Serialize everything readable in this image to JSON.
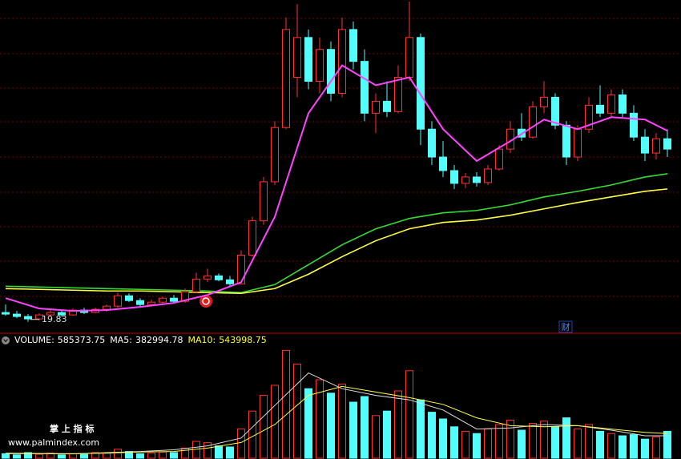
{
  "chart_data": [
    {
      "type": "candlestick",
      "up_color": "#ff3232",
      "down_color": "#54fcfc",
      "ylim": [
        18.5,
        60
      ],
      "open": [
        21.0,
        20.8,
        20.5,
        20.2,
        20.7,
        21.0,
        20.7,
        21.3,
        21.0,
        21.4,
        21.8,
        23.1,
        22.5,
        22.0,
        22.3,
        22.8,
        22.4,
        23.6,
        25.2,
        25.6,
        25.1,
        24.6,
        28.2,
        32.5,
        37.4,
        44.2,
        50.5,
        55.5,
        50.0,
        54.0,
        48.5,
        56.5,
        52.5,
        46.0,
        47.5,
        46.2,
        50.5,
        55.5,
        44.0,
        40.5,
        38.8,
        37.2,
        38.0,
        37.3,
        39.0,
        41.5,
        44.0,
        43.0,
        46.8,
        48.0,
        44.5,
        40.5,
        44.0,
        47.0,
        46.0,
        48.3,
        46.0,
        43.0,
        41.0,
        42.8
      ],
      "high": [
        22.0,
        21.2,
        20.8,
        20.9,
        21.3,
        21.3,
        21.5,
        21.6,
        21.6,
        22.0,
        23.5,
        23.4,
        22.8,
        22.6,
        23.0,
        23.2,
        24.0,
        26.0,
        26.5,
        25.9,
        25.6,
        28.8,
        33.0,
        38.0,
        45.0,
        58.0,
        59.7,
        56.5,
        55.5,
        55.0,
        58.0,
        57.5,
        54.0,
        48.5,
        50.0,
        52.0,
        60.0,
        56.0,
        45.0,
        42.5,
        39.5,
        38.5,
        38.6,
        39.5,
        42.0,
        45.0,
        46.0,
        47.5,
        50.0,
        48.5,
        45.0,
        44.5,
        48.0,
        49.5,
        49.0,
        49.0,
        47.0,
        44.0,
        43.5,
        44.0
      ],
      "low": [
        20.6,
        20.3,
        19.83,
        20.0,
        20.5,
        20.5,
        20.6,
        20.8,
        20.9,
        21.1,
        21.6,
        22.3,
        21.8,
        21.8,
        22.0,
        22.1,
        22.2,
        23.4,
        24.8,
        24.9,
        24.3,
        24.5,
        28.0,
        32.0,
        37.0,
        44.0,
        48.0,
        49.0,
        48.5,
        47.5,
        48.0,
        51.5,
        45.0,
        43.5,
        45.5,
        46.0,
        50.0,
        42.0,
        39.5,
        38.0,
        36.5,
        36.6,
        36.8,
        37.0,
        38.8,
        41.0,
        42.5,
        42.8,
        46.0,
        44.0,
        39.5,
        40.0,
        43.5,
        45.5,
        45.5,
        45.5,
        42.5,
        40.0,
        40.2,
        40.5
      ],
      "close": [
        20.8,
        20.5,
        20.2,
        20.7,
        21.0,
        20.7,
        21.3,
        21.0,
        21.4,
        21.8,
        23.1,
        22.5,
        22.0,
        22.3,
        22.8,
        22.4,
        23.6,
        25.2,
        25.6,
        25.1,
        24.6,
        28.2,
        32.5,
        37.4,
        44.2,
        56.5,
        55.5,
        50.0,
        54.0,
        48.5,
        56.5,
        52.5,
        46.0,
        47.5,
        46.2,
        50.5,
        55.5,
        44.0,
        40.5,
        38.8,
        37.2,
        38.0,
        37.3,
        39.0,
        41.5,
        44.0,
        43.0,
        46.8,
        48.0,
        44.5,
        40.5,
        44.0,
        47.0,
        46.0,
        48.3,
        46.0,
        43.0,
        41.0,
        42.8,
        41.5
      ],
      "lines": [
        {
          "color": "#33dd33",
          "x": [
            0,
            3,
            6,
            9,
            12,
            15,
            18,
            21,
            24,
            27,
            30,
            33,
            36,
            39,
            42,
            45,
            48,
            51,
            54,
            57,
            59
          ],
          "values": [
            24.3,
            24.2,
            24.1,
            24.0,
            23.9,
            23.8,
            23.7,
            23.5,
            24.5,
            27.0,
            29.5,
            31.5,
            32.8,
            33.5,
            33.8,
            34.5,
            35.5,
            36.2,
            37.0,
            38.0,
            38.4
          ]
        },
        {
          "color": "#ffff44",
          "x": [
            0,
            3,
            6,
            9,
            12,
            15,
            18,
            21,
            24,
            27,
            30,
            33,
            36,
            39,
            42,
            45,
            48,
            51,
            54,
            57,
            59
          ],
          "values": [
            24.0,
            23.9,
            23.8,
            23.7,
            23.7,
            23.6,
            23.5,
            23.4,
            24.0,
            25.8,
            28.0,
            30.0,
            31.5,
            32.3,
            32.6,
            33.2,
            34.0,
            34.8,
            35.5,
            36.2,
            36.5
          ]
        },
        {
          "color": "#ff44ff",
          "x": [
            0,
            3,
            6,
            9,
            12,
            15,
            18,
            21,
            24,
            27,
            30,
            33,
            36,
            39,
            42,
            45,
            48,
            51,
            54,
            57,
            59
          ],
          "values": [
            22.8,
            21.5,
            21.2,
            21.3,
            21.7,
            22.2,
            23.2,
            24.8,
            33.0,
            46.0,
            52.0,
            49.5,
            50.5,
            44.0,
            40.0,
            42.5,
            45.2,
            44.0,
            45.5,
            45.2,
            43.8
          ]
        }
      ],
      "low_label": 19.83,
      "annotation": "财"
    },
    {
      "type": "volume",
      "up_color": "#ff3232",
      "down_color": "#54fcfc",
      "ylim": [
        0,
        1000000
      ],
      "values": [
        40000,
        30000,
        50000,
        35000,
        45000,
        30000,
        40000,
        35000,
        50000,
        45000,
        80000,
        60000,
        40000,
        45000,
        55000,
        50000,
        90000,
        150000,
        140000,
        110000,
        100000,
        260000,
        420000,
        560000,
        650000,
        960000,
        840000,
        620000,
        700000,
        580000,
        660000,
        500000,
        550000,
        380000,
        420000,
        600000,
        780000,
        520000,
        410000,
        350000,
        280000,
        240000,
        220000,
        260000,
        300000,
        340000,
        250000,
        310000,
        330000,
        280000,
        360000,
        260000,
        300000,
        240000,
        220000,
        200000,
        210000,
        170000,
        190000,
        240000
      ],
      "lines": [
        {
          "color": "#dddddd",
          "x": [
            0,
            3,
            6,
            9,
            12,
            15,
            18,
            21,
            24,
            27,
            30,
            33,
            36,
            39,
            42,
            45,
            48,
            51,
            54,
            57,
            59
          ],
          "values": [
            40000,
            40000,
            38000,
            50000,
            60000,
            75000,
            110000,
            180000,
            470000,
            760000,
            620000,
            560000,
            520000,
            430000,
            260000,
            270000,
            300000,
            290000,
            250000,
            200000,
            200000
          ]
        },
        {
          "color": "#ffff44",
          "x": [
            0,
            3,
            6,
            9,
            12,
            15,
            18,
            21,
            24,
            27,
            30,
            33,
            36,
            39,
            42,
            45,
            48,
            51,
            54,
            57,
            59
          ],
          "values": [
            45000,
            42000,
            40000,
            45000,
            55000,
            60000,
            90000,
            140000,
            300000,
            560000,
            640000,
            590000,
            540000,
            480000,
            360000,
            290000,
            280000,
            290000,
            260000,
            230000,
            220000
          ]
        }
      ],
      "legend": [
        {
          "name": "VOLUME:",
          "value": 585373.75,
          "color": "#ffffff"
        },
        {
          "name": "MA5:",
          "value": 382994.78,
          "color": "#ffffff"
        },
        {
          "name": "MA10:",
          "value": 543998.75,
          "color": "#ffff44"
        }
      ]
    }
  ],
  "watermark": {
    "title": "掌 上 指 标",
    "url": "www.palmindex.com"
  }
}
